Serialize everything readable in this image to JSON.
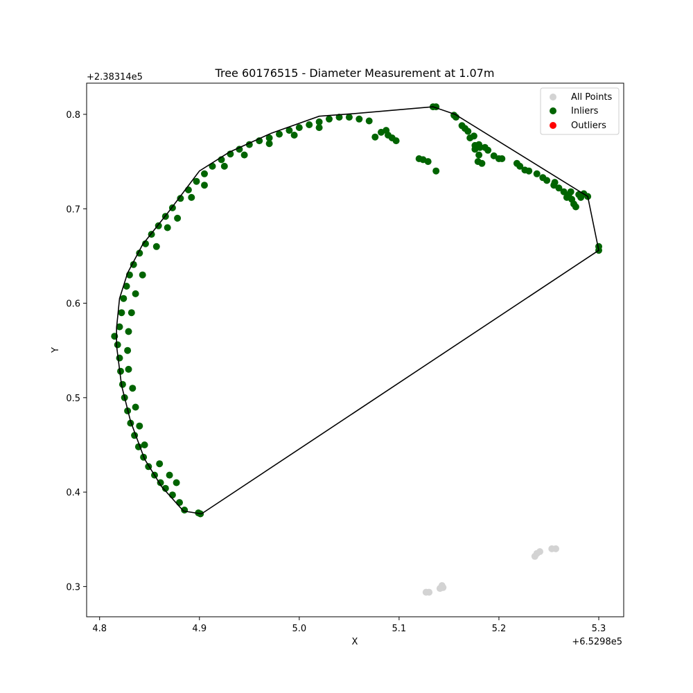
{
  "chart_data": {
    "type": "scatter",
    "title": "Tree 60176515 - Diameter Measurement at 1.07m",
    "xlabel": "X",
    "ylabel": "Y",
    "x_offset_label": "+6.5298e5",
    "y_offset_label": "+2.38314e5",
    "xlim": [
      4.787,
      5.325
    ],
    "ylim": [
      0.268,
      0.833
    ],
    "xticks": [
      "4.8",
      "4.9",
      "5.0",
      "5.1",
      "5.2",
      "5.3"
    ],
    "yticks": [
      "0.3",
      "0.4",
      "0.5",
      "0.6",
      "0.7",
      "0.8"
    ],
    "grid": false,
    "legend_position": "top-right",
    "legend": [
      {
        "label": "All Points",
        "color": "#d3d3d3"
      },
      {
        "label": "Inliers",
        "color": "#006400"
      },
      {
        "label": "Outliers",
        "color": "#ff0000"
      }
    ],
    "series": [
      {
        "name": "All Points",
        "color": "#d3d3d3",
        "points": [
          [
            5.127,
            0.294
          ],
          [
            5.13,
            0.294
          ],
          [
            5.141,
            0.298
          ],
          [
            5.143,
            0.301
          ],
          [
            5.144,
            0.299
          ],
          [
            5.236,
            0.332
          ],
          [
            5.238,
            0.335
          ],
          [
            5.241,
            0.337
          ],
          [
            5.253,
            0.34
          ],
          [
            5.257,
            0.34
          ]
        ]
      },
      {
        "name": "Inliers",
        "color": "#006400",
        "points": [
          [
            4.901,
            0.377
          ],
          [
            4.899,
            0.378
          ],
          [
            4.885,
            0.381
          ],
          [
            4.88,
            0.389
          ],
          [
            4.873,
            0.397
          ],
          [
            4.866,
            0.404
          ],
          [
            4.861,
            0.41
          ],
          [
            4.855,
            0.418
          ],
          [
            4.849,
            0.427
          ],
          [
            4.844,
            0.437
          ],
          [
            4.839,
            0.448
          ],
          [
            4.835,
            0.46
          ],
          [
            4.831,
            0.473
          ],
          [
            4.828,
            0.486
          ],
          [
            4.825,
            0.5
          ],
          [
            4.823,
            0.514
          ],
          [
            4.821,
            0.528
          ],
          [
            4.82,
            0.542
          ],
          [
            4.818,
            0.556
          ],
          [
            4.815,
            0.565
          ],
          [
            4.82,
            0.575
          ],
          [
            4.822,
            0.59
          ],
          [
            4.824,
            0.605
          ],
          [
            4.827,
            0.618
          ],
          [
            4.83,
            0.63
          ],
          [
            4.834,
            0.641
          ],
          [
            4.84,
            0.653
          ],
          [
            4.846,
            0.663
          ],
          [
            4.852,
            0.673
          ],
          [
            4.859,
            0.682
          ],
          [
            4.866,
            0.692
          ],
          [
            4.873,
            0.701
          ],
          [
            4.881,
            0.711
          ],
          [
            4.889,
            0.72
          ],
          [
            4.897,
            0.729
          ],
          [
            4.905,
            0.737
          ],
          [
            4.913,
            0.745
          ],
          [
            4.922,
            0.752
          ],
          [
            4.931,
            0.758
          ],
          [
            4.94,
            0.763
          ],
          [
            4.95,
            0.768
          ],
          [
            4.96,
            0.772
          ],
          [
            4.97,
            0.775
          ],
          [
            4.98,
            0.779
          ],
          [
            4.99,
            0.783
          ],
          [
            5.0,
            0.786
          ],
          [
            5.01,
            0.789
          ],
          [
            5.02,
            0.792
          ],
          [
            5.03,
            0.795
          ],
          [
            5.04,
            0.797
          ],
          [
            5.05,
            0.797
          ],
          [
            5.06,
            0.795
          ],
          [
            5.07,
            0.793
          ],
          [
            4.845,
            0.45
          ],
          [
            4.84,
            0.47
          ],
          [
            4.836,
            0.49
          ],
          [
            4.833,
            0.51
          ],
          [
            4.829,
            0.53
          ],
          [
            4.828,
            0.55
          ],
          [
            4.829,
            0.57
          ],
          [
            4.832,
            0.59
          ],
          [
            4.836,
            0.61
          ],
          [
            4.843,
            0.63
          ],
          [
            4.857,
            0.66
          ],
          [
            4.868,
            0.68
          ],
          [
            4.878,
            0.69
          ],
          [
            4.892,
            0.712
          ],
          [
            4.905,
            0.725
          ],
          [
            4.925,
            0.745
          ],
          [
            4.945,
            0.757
          ],
          [
            4.97,
            0.769
          ],
          [
            4.995,
            0.778
          ],
          [
            5.02,
            0.786
          ],
          [
            4.87,
            0.418
          ],
          [
            4.877,
            0.41
          ],
          [
            4.86,
            0.43
          ],
          [
            5.076,
            0.776
          ],
          [
            5.082,
            0.781
          ],
          [
            5.087,
            0.783
          ],
          [
            5.089,
            0.778
          ],
          [
            5.093,
            0.775
          ],
          [
            5.097,
            0.772
          ],
          [
            5.12,
            0.753
          ],
          [
            5.124,
            0.752
          ],
          [
            5.129,
            0.75
          ],
          [
            5.137,
            0.74
          ],
          [
            5.134,
            0.808
          ],
          [
            5.137,
            0.808
          ],
          [
            5.155,
            0.799
          ],
          [
            5.157,
            0.797
          ],
          [
            5.163,
            0.788
          ],
          [
            5.166,
            0.785
          ],
          [
            5.169,
            0.782
          ],
          [
            5.171,
            0.775
          ],
          [
            5.175,
            0.777
          ],
          [
            5.176,
            0.767
          ],
          [
            5.18,
            0.768
          ],
          [
            5.181,
            0.765
          ],
          [
            5.176,
            0.763
          ],
          [
            5.18,
            0.757
          ],
          [
            5.179,
            0.75
          ],
          [
            5.183,
            0.748
          ],
          [
            5.186,
            0.765
          ],
          [
            5.189,
            0.762
          ],
          [
            5.195,
            0.756
          ],
          [
            5.2,
            0.753
          ],
          [
            5.203,
            0.753
          ],
          [
            5.218,
            0.748
          ],
          [
            5.221,
            0.745
          ],
          [
            5.226,
            0.741
          ],
          [
            5.23,
            0.74
          ],
          [
            5.238,
            0.737
          ],
          [
            5.244,
            0.733
          ],
          [
            5.248,
            0.73
          ],
          [
            5.256,
            0.728
          ],
          [
            5.255,
            0.725
          ],
          [
            5.26,
            0.722
          ],
          [
            5.265,
            0.718
          ],
          [
            5.27,
            0.715
          ],
          [
            5.273,
            0.71
          ],
          [
            5.275,
            0.705
          ],
          [
            5.277,
            0.702
          ],
          [
            5.28,
            0.715
          ],
          [
            5.282,
            0.712
          ],
          [
            5.285,
            0.716
          ],
          [
            5.289,
            0.713
          ],
          [
            5.268,
            0.712
          ],
          [
            5.272,
            0.718
          ],
          [
            5.3,
            0.656
          ],
          [
            5.3,
            0.66
          ]
        ]
      },
      {
        "name": "Outliers",
        "color": "#ff0000",
        "points": []
      }
    ],
    "hull": {
      "color": "#000000",
      "points": [
        [
          4.902,
          0.377
        ],
        [
          4.884,
          0.38
        ],
        [
          4.862,
          0.406
        ],
        [
          4.845,
          0.435
        ],
        [
          4.831,
          0.475
        ],
        [
          4.822,
          0.513
        ],
        [
          4.817,
          0.555
        ],
        [
          4.817,
          0.574
        ],
        [
          4.82,
          0.605
        ],
        [
          4.828,
          0.632
        ],
        [
          4.843,
          0.662
        ],
        [
          4.87,
          0.698
        ],
        [
          4.9,
          0.74
        ],
        [
          4.93,
          0.76
        ],
        [
          4.972,
          0.78
        ],
        [
          5.02,
          0.798
        ],
        [
          5.058,
          0.801
        ],
        [
          5.134,
          0.808
        ],
        [
          5.156,
          0.8
        ],
        [
          5.289,
          0.713
        ],
        [
          5.3,
          0.656
        ],
        [
          4.902,
          0.377
        ]
      ]
    }
  }
}
